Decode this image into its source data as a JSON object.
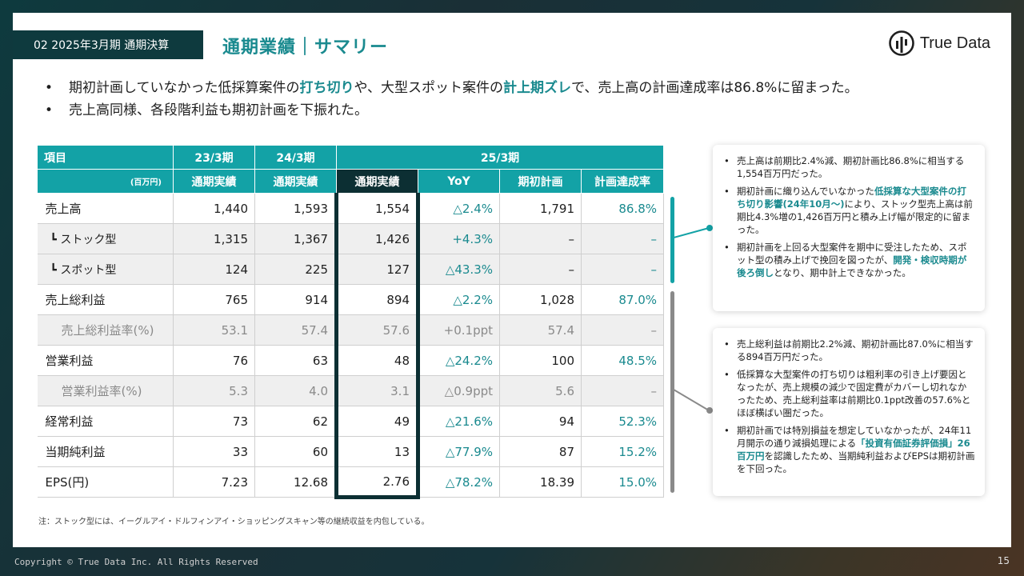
{
  "header": {
    "section_tag": "02 2025年3月期 通期決算",
    "title": "通期業績｜サマリー",
    "logo_text": "True Data"
  },
  "bullets": [
    {
      "parts": [
        {
          "t": "期初計画していなかった低採算案件の",
          "hl": false
        },
        {
          "t": "打ち切り",
          "hl": true
        },
        {
          "t": "や、大型スポット案件の",
          "hl": false
        },
        {
          "t": "計上期ズレ",
          "hl": true
        },
        {
          "t": "で、売上高の計画達成率は86.8%に留まった。",
          "hl": false
        }
      ]
    },
    {
      "parts": [
        {
          "t": "売上高同様、各段階利益も期初計画を下振れた。",
          "hl": false
        }
      ]
    }
  ],
  "table": {
    "col_item": "項目",
    "unit": "(百万円)",
    "fy23": "23/3期",
    "fy24": "24/3期",
    "fy25": "25/3期",
    "subheaders": [
      "通期実績",
      "通期実績",
      "通期実績",
      "YoY",
      "期初計画",
      "計画達成率"
    ],
    "rows": [
      {
        "label": "売上高",
        "kind": "main",
        "v23": "1,440",
        "v24": "1,593",
        "v25": "1,554",
        "yoy": "△2.4%",
        "plan": "1,791",
        "ach": "86.8%"
      },
      {
        "label": "┗ ストック型",
        "kind": "sub",
        "v23": "1,315",
        "v24": "1,367",
        "v25": "1,426",
        "yoy": "+4.3%",
        "plan": "–",
        "ach": "–"
      },
      {
        "label": "┗ スポット型",
        "kind": "sub",
        "v23": "124",
        "v24": "225",
        "v25": "127",
        "yoy": "△43.3%",
        "plan": "–",
        "ach": "–"
      },
      {
        "label": "売上総利益",
        "kind": "main",
        "v23": "765",
        "v24": "914",
        "v25": "894",
        "yoy": "△2.2%",
        "plan": "1,028",
        "ach": "87.0%"
      },
      {
        "label": "売上総利益率(%)",
        "kind": "ratio",
        "v23": "53.1",
        "v24": "57.4",
        "v25": "57.6",
        "yoy": "+0.1ppt",
        "plan": "57.4",
        "ach": "–"
      },
      {
        "label": "営業利益",
        "kind": "main",
        "v23": "76",
        "v24": "63",
        "v25": "48",
        "yoy": "△24.2%",
        "plan": "100",
        "ach": "48.5%"
      },
      {
        "label": "営業利益率(%)",
        "kind": "ratio",
        "v23": "5.3",
        "v24": "4.0",
        "v25": "3.1",
        "yoy": "△0.9ppt",
        "plan": "5.6",
        "ach": "–"
      },
      {
        "label": "経常利益",
        "kind": "main",
        "v23": "73",
        "v24": "62",
        "v25": "49",
        "yoy": "△21.6%",
        "plan": "94",
        "ach": "52.3%"
      },
      {
        "label": "当期純利益",
        "kind": "main",
        "v23": "33",
        "v24": "60",
        "v25": "13",
        "yoy": "△77.9%",
        "plan": "87",
        "ach": "15.2%"
      },
      {
        "label": "EPS(円)",
        "kind": "main",
        "v23": "7.23",
        "v24": "12.68",
        "v25": "2.76",
        "yoy": "△78.2%",
        "plan": "18.39",
        "ach": "15.0%"
      }
    ]
  },
  "notes1": [
    [
      {
        "t": "売上高は前期比2.4%減、期初計画比86.8%に相当する1,554百万円だった。",
        "hl": false
      }
    ],
    [
      {
        "t": "期初計画に織り込んでいなかった",
        "hl": false
      },
      {
        "t": "低採算な大型案件の打ち切り影響(24年10月～)",
        "hl": true
      },
      {
        "t": "により、ストック型売上高は前期比4.3%増の1,426百万円と積み上げ幅が限定的に留まった。",
        "hl": false
      }
    ],
    [
      {
        "t": "期初計画を上回る大型案件を期中に受注したため、スポット型の積み上げで挽回を図ったが、",
        "hl": false
      },
      {
        "t": "開発・検収時期が後ろ倒し",
        "hl": true
      },
      {
        "t": "となり、期中計上できなかった。",
        "hl": false
      }
    ]
  ],
  "notes2": [
    [
      {
        "t": "売上総利益は前期比2.2%減、期初計画比87.0%に相当する894百万円だった。",
        "hl": false
      }
    ],
    [
      {
        "t": "低採算な大型案件の打ち切りは粗利率の引き上げ要因となったが、売上規模の減少で固定費がカバーし切れなかったため、売上総利益率は前期比0.1ppt改善の57.6%とほぼ横ばい圏だった。",
        "hl": false
      }
    ],
    [
      {
        "t": "期初計画では特別損益を想定していなかったが、24年11月開示の通り減損処理による",
        "hl": false
      },
      {
        "t": "「投資有価証券評価損」26百万円",
        "hl": true
      },
      {
        "t": "を認識したため、当期純利益およびEPSは期初計画を下回った。",
        "hl": false
      }
    ]
  ],
  "footnote": "注：ストック型には、イーグルアイ・ドルフィンアイ・ショッピングスキャン等の継続収益を内包している。",
  "footer": {
    "copyright": "Copyright © True Data Inc. All Rights Reserved",
    "page_number": "15"
  },
  "colors": {
    "accent": "#13a2a6",
    "accent_text": "#1a8a8f",
    "dark": "#0c2f33",
    "grey_bar": "#8a8a8a"
  },
  "icons": [
    "true-data-logo-icon"
  ]
}
